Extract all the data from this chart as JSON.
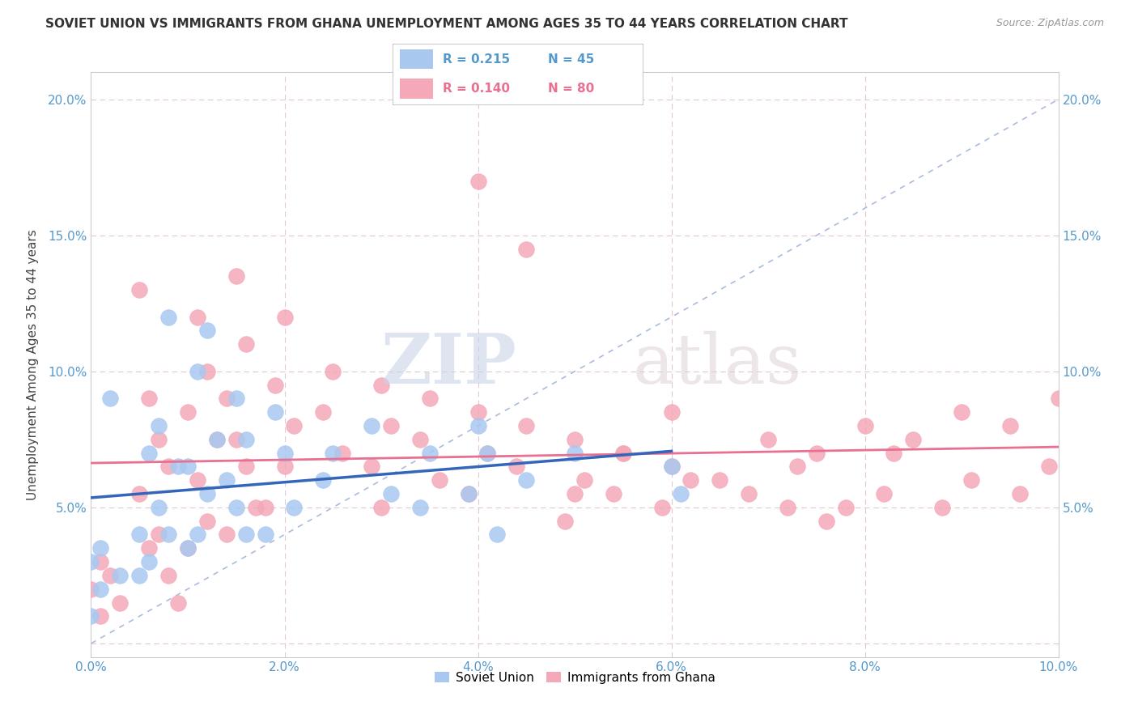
{
  "title": "SOVIET UNION VS IMMIGRANTS FROM GHANA UNEMPLOYMENT AMONG AGES 35 TO 44 YEARS CORRELATION CHART",
  "source": "Source: ZipAtlas.com",
  "ylabel": "Unemployment Among Ages 35 to 44 years",
  "xlim": [
    0.0,
    0.1
  ],
  "ylim": [
    -0.005,
    0.21
  ],
  "xtick_vals": [
    0.0,
    0.02,
    0.04,
    0.06,
    0.08,
    0.1
  ],
  "xtick_labels": [
    "0.0%",
    "2.0%",
    "4.0%",
    "6.0%",
    "8.0%",
    "10.0%"
  ],
  "ytick_vals": [
    0.0,
    0.05,
    0.1,
    0.15,
    0.2
  ],
  "ytick_labels": [
    "",
    "5.0%",
    "10.0%",
    "15.0%",
    "20.0%"
  ],
  "watermark_zip": "ZIP",
  "watermark_atlas": "atlas",
  "soviet_color": "#a8c8f0",
  "ghana_color": "#f4a8b8",
  "soviet_line_color": "#3366bb",
  "ghana_line_color": "#e87090",
  "diag_line_color": "#aabbdd",
  "background_color": "#ffffff",
  "grid_color": "#e8d8e0",
  "tick_color": "#5599cc",
  "soviet_label": "Soviet Union",
  "ghana_label": "Immigrants from Ghana",
  "soviet_scatter_x": [
    0.002,
    0.005,
    0.001,
    0.0,
    0.003,
    0.001,
    0.0,
    0.008,
    0.007,
    0.006,
    0.009,
    0.007,
    0.008,
    0.006,
    0.005,
    0.012,
    0.011,
    0.013,
    0.01,
    0.012,
    0.011,
    0.01,
    0.015,
    0.016,
    0.014,
    0.015,
    0.016,
    0.019,
    0.02,
    0.021,
    0.018,
    0.025,
    0.024,
    0.029,
    0.031,
    0.035,
    0.034,
    0.04,
    0.041,
    0.039,
    0.042,
    0.045,
    0.05,
    0.06,
    0.061
  ],
  "soviet_scatter_y": [
    0.09,
    0.04,
    0.035,
    0.03,
    0.025,
    0.02,
    0.01,
    0.12,
    0.08,
    0.07,
    0.065,
    0.05,
    0.04,
    0.03,
    0.025,
    0.115,
    0.1,
    0.075,
    0.065,
    0.055,
    0.04,
    0.035,
    0.09,
    0.075,
    0.06,
    0.05,
    0.04,
    0.085,
    0.07,
    0.05,
    0.04,
    0.07,
    0.06,
    0.08,
    0.055,
    0.07,
    0.05,
    0.08,
    0.07,
    0.055,
    0.04,
    0.06,
    0.07,
    0.065,
    0.055
  ],
  "ghana_scatter_x": [
    0.001,
    0.002,
    0.0,
    0.003,
    0.001,
    0.006,
    0.007,
    0.008,
    0.005,
    0.007,
    0.006,
    0.008,
    0.009,
    0.005,
    0.011,
    0.012,
    0.01,
    0.013,
    0.011,
    0.012,
    0.01,
    0.015,
    0.016,
    0.014,
    0.015,
    0.016,
    0.017,
    0.014,
    0.02,
    0.019,
    0.021,
    0.02,
    0.018,
    0.025,
    0.024,
    0.026,
    0.03,
    0.031,
    0.029,
    0.03,
    0.035,
    0.034,
    0.036,
    0.04,
    0.041,
    0.039,
    0.045,
    0.044,
    0.05,
    0.051,
    0.049,
    0.055,
    0.054,
    0.06,
    0.059,
    0.04,
    0.045,
    0.05,
    0.06,
    0.065,
    0.07,
    0.072,
    0.075,
    0.076,
    0.08,
    0.082,
    0.085,
    0.088,
    0.09,
    0.091,
    0.095,
    0.096,
    0.1,
    0.099,
    0.055,
    0.062,
    0.068,
    0.073,
    0.078,
    0.083
  ],
  "ghana_scatter_y": [
    0.03,
    0.025,
    0.02,
    0.015,
    0.01,
    0.09,
    0.075,
    0.065,
    0.055,
    0.04,
    0.035,
    0.025,
    0.015,
    0.13,
    0.12,
    0.1,
    0.085,
    0.075,
    0.06,
    0.045,
    0.035,
    0.135,
    0.11,
    0.09,
    0.075,
    0.065,
    0.05,
    0.04,
    0.12,
    0.095,
    0.08,
    0.065,
    0.05,
    0.1,
    0.085,
    0.07,
    0.095,
    0.08,
    0.065,
    0.05,
    0.09,
    0.075,
    0.06,
    0.085,
    0.07,
    0.055,
    0.08,
    0.065,
    0.075,
    0.06,
    0.045,
    0.07,
    0.055,
    0.065,
    0.05,
    0.17,
    0.145,
    0.055,
    0.085,
    0.06,
    0.075,
    0.05,
    0.07,
    0.045,
    0.08,
    0.055,
    0.075,
    0.05,
    0.085,
    0.06,
    0.08,
    0.055,
    0.09,
    0.065,
    0.07,
    0.06,
    0.055,
    0.065,
    0.05,
    0.07
  ]
}
